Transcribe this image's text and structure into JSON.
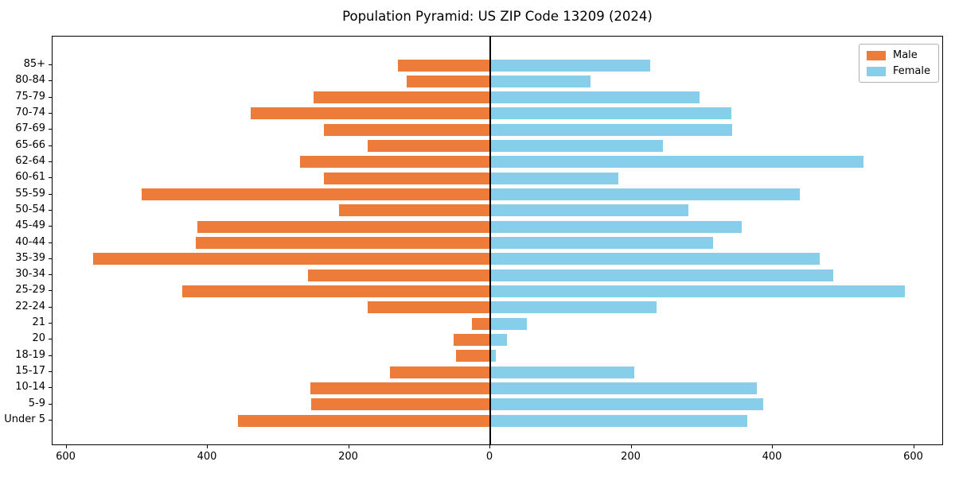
{
  "title": "Population Pyramid: US ZIP Code 13209 (2024)",
  "legend": {
    "male_label": "Male",
    "female_label": "Female"
  },
  "colors": {
    "male": "#ed7b3a",
    "female": "#87ceeb",
    "axis": "#000000",
    "zero_line": "#000000",
    "background": "#ffffff",
    "legend_border": "#b0b0b0"
  },
  "chart_data": {
    "type": "bar",
    "subtype": "population-pyramid-diverging-horizontal",
    "title": "Population Pyramid: US ZIP Code 13209 (2024)",
    "categories_top_to_bottom": [
      "85+",
      "80-84",
      "75-79",
      "70-74",
      "67-69",
      "65-66",
      "62-64",
      "60-61",
      "55-59",
      "50-54",
      "45-49",
      "40-44",
      "35-39",
      "30-34",
      "25-29",
      "22-24",
      "21",
      "20",
      "18-19",
      "15-17",
      "10-14",
      "5-9",
      "Under 5"
    ],
    "series": [
      {
        "name": "Male",
        "side": "left",
        "color": "#ed7b3a",
        "values": [
          131,
          118,
          250,
          339,
          235,
          173,
          269,
          236,
          493,
          214,
          415,
          417,
          562,
          258,
          436,
          173,
          26,
          52,
          48,
          142,
          255,
          254,
          357
        ]
      },
      {
        "name": "Female",
        "side": "right",
        "color": "#87ceeb",
        "values": [
          227,
          142,
          296,
          341,
          343,
          244,
          528,
          181,
          438,
          280,
          356,
          315,
          466,
          486,
          587,
          236,
          52,
          24,
          8,
          204,
          378,
          386,
          364
        ]
      }
    ],
    "x_ticks": [
      -600,
      -400,
      -200,
      0,
      200,
      400,
      600
    ],
    "x_tick_labels": [
      "600",
      "400",
      "200",
      "0",
      "200",
      "400",
      "600"
    ],
    "xlabel": "",
    "ylabel": "",
    "xlim": [
      -620,
      643
    ],
    "grid": false,
    "legend_position": "upper right"
  }
}
